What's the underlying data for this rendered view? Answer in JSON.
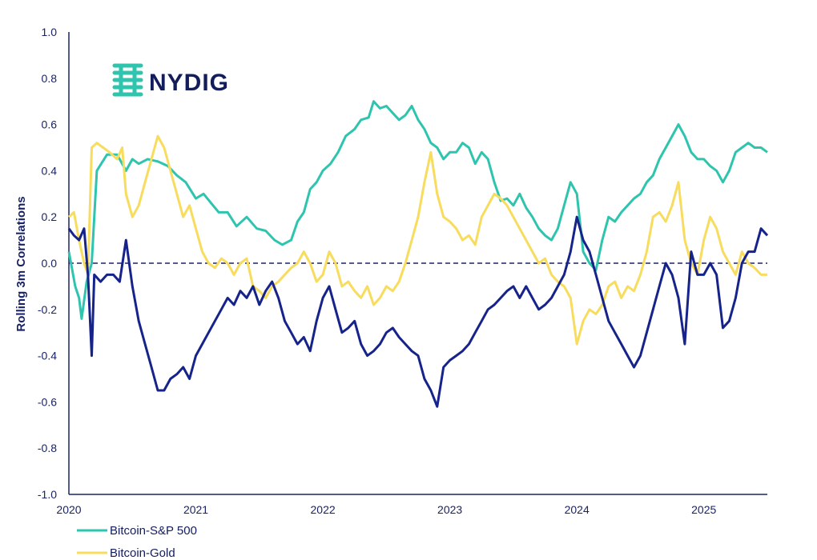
{
  "brand": {
    "name": "NYDIG",
    "icon": "nydig-logo-icon"
  },
  "colors": {
    "sp500": "#2ec4ae",
    "gold": "#f7dc5e",
    "btc": "#16238a",
    "axis": "#1a2366",
    "zero": "#1a2366",
    "logo": "#2ec4ae"
  },
  "chart_data": {
    "type": "line",
    "title": "",
    "xlabel": "",
    "ylabel": "Rolling 3m Correlations",
    "ylim": [
      -1.0,
      1.0
    ],
    "yticks": [
      "1.0",
      "0.8",
      "0.6",
      "0.4",
      "0.2",
      "0.0",
      "-0.2",
      "-0.4",
      "-0.6",
      "-0.8",
      "-1.0"
    ],
    "xlim": [
      2020.0,
      2025.5
    ],
    "xticks": [
      "2020",
      "2021",
      "2022",
      "2023",
      "2024",
      "2025"
    ],
    "grid": false,
    "zero_line": "dashed",
    "legend_placement": "bottom-left",
    "series": [
      {
        "name": "Bitcoin-S&P 500",
        "color": "#2ec4ae",
        "x": [
          2020.0,
          2020.05,
          2020.08,
          2020.1,
          2020.14,
          2020.18,
          2020.22,
          2020.3,
          2020.38,
          2020.45,
          2020.5,
          2020.55,
          2020.62,
          2020.7,
          2020.78,
          2020.85,
          2020.92,
          2021.0,
          2021.06,
          2021.12,
          2021.18,
          2021.25,
          2021.32,
          2021.4,
          2021.48,
          2021.55,
          2021.62,
          2021.68,
          2021.75,
          2021.8,
          2021.85,
          2021.9,
          2021.95,
          2022.0,
          2022.06,
          2022.12,
          2022.18,
          2022.25,
          2022.3,
          2022.36,
          2022.4,
          2022.45,
          2022.5,
          2022.55,
          2022.6,
          2022.65,
          2022.7,
          2022.75,
          2022.8,
          2022.85,
          2022.9,
          2022.95,
          2023.0,
          2023.05,
          2023.1,
          2023.15,
          2023.2,
          2023.25,
          2023.3,
          2023.35,
          2023.4,
          2023.45,
          2023.5,
          2023.55,
          2023.6,
          2023.65,
          2023.7,
          2023.75,
          2023.8,
          2023.85,
          2023.9,
          2023.95,
          2024.0,
          2024.05,
          2024.1,
          2024.15,
          2024.2,
          2024.25,
          2024.3,
          2024.35,
          2024.4,
          2024.45,
          2024.5,
          2024.55,
          2024.6,
          2024.65,
          2024.7,
          2024.75,
          2024.8,
          2024.85,
          2024.9,
          2024.95,
          2025.0,
          2025.05,
          2025.1,
          2025.15,
          2025.2,
          2025.25,
          2025.3,
          2025.35,
          2025.4,
          2025.45,
          2025.5
        ],
        "values": [
          0.05,
          -0.1,
          -0.15,
          -0.24,
          -0.08,
          0.0,
          0.4,
          0.47,
          0.47,
          0.4,
          0.45,
          0.43,
          0.45,
          0.44,
          0.42,
          0.38,
          0.35,
          0.28,
          0.3,
          0.26,
          0.22,
          0.22,
          0.16,
          0.2,
          0.15,
          0.14,
          0.1,
          0.08,
          0.1,
          0.18,
          0.22,
          0.32,
          0.35,
          0.4,
          0.43,
          0.48,
          0.55,
          0.58,
          0.62,
          0.63,
          0.7,
          0.67,
          0.68,
          0.65,
          0.62,
          0.64,
          0.68,
          0.62,
          0.58,
          0.52,
          0.5,
          0.45,
          0.48,
          0.48,
          0.52,
          0.5,
          0.43,
          0.48,
          0.45,
          0.35,
          0.27,
          0.28,
          0.25,
          0.3,
          0.24,
          0.2,
          0.15,
          0.12,
          0.1,
          0.15,
          0.25,
          0.35,
          0.3,
          0.05,
          0.0,
          -0.03,
          0.1,
          0.2,
          0.18,
          0.22,
          0.25,
          0.28,
          0.3,
          0.35,
          0.38,
          0.45,
          0.5,
          0.55,
          0.6,
          0.55,
          0.48,
          0.45,
          0.45,
          0.42,
          0.4,
          0.35,
          0.4,
          0.48,
          0.5,
          0.52,
          0.5,
          0.5,
          0.48
        ]
      },
      {
        "name": "Bitcoin-Gold",
        "color": "#f7dc5e",
        "x": [
          2020.0,
          2020.04,
          2020.08,
          2020.12,
          2020.15,
          2020.18,
          2020.22,
          2020.27,
          2020.32,
          2020.38,
          2020.42,
          2020.45,
          2020.5,
          2020.55,
          2020.6,
          2020.65,
          2020.7,
          2020.75,
          2020.8,
          2020.85,
          2020.9,
          2020.95,
          2021.0,
          2021.05,
          2021.1,
          2021.15,
          2021.2,
          2021.25,
          2021.3,
          2021.35,
          2021.4,
          2021.45,
          2021.5,
          2021.55,
          2021.6,
          2021.65,
          2021.7,
          2021.75,
          2021.8,
          2021.85,
          2021.9,
          2021.95,
          2022.0,
          2022.05,
          2022.1,
          2022.15,
          2022.2,
          2022.25,
          2022.3,
          2022.35,
          2022.4,
          2022.45,
          2022.5,
          2022.55,
          2022.6,
          2022.65,
          2022.7,
          2022.75,
          2022.8,
          2022.85,
          2022.9,
          2022.95,
          2023.0,
          2023.05,
          2023.1,
          2023.15,
          2023.2,
          2023.25,
          2023.3,
          2023.35,
          2023.4,
          2023.45,
          2023.5,
          2023.55,
          2023.6,
          2023.65,
          2023.7,
          2023.75,
          2023.8,
          2023.85,
          2023.9,
          2023.95,
          2024.0,
          2024.05,
          2024.1,
          2024.15,
          2024.2,
          2024.25,
          2024.3,
          2024.35,
          2024.4,
          2024.45,
          2024.5,
          2024.55,
          2024.6,
          2024.65,
          2024.7,
          2024.75,
          2024.8,
          2024.85,
          2024.9,
          2024.95,
          2025.0,
          2025.05,
          2025.1,
          2025.15,
          2025.2,
          2025.25,
          2025.3,
          2025.35,
          2025.4,
          2025.45,
          2025.5
        ],
        "values": [
          0.2,
          0.22,
          0.1,
          0.0,
          -0.05,
          0.5,
          0.52,
          0.5,
          0.48,
          0.45,
          0.5,
          0.3,
          0.2,
          0.25,
          0.35,
          0.45,
          0.55,
          0.5,
          0.4,
          0.3,
          0.2,
          0.25,
          0.15,
          0.05,
          0.0,
          -0.02,
          0.02,
          0.0,
          -0.05,
          0.0,
          0.02,
          -0.1,
          -0.12,
          -0.15,
          -0.1,
          -0.08,
          -0.05,
          -0.02,
          0.0,
          0.05,
          0.0,
          -0.08,
          -0.05,
          0.05,
          0.0,
          -0.1,
          -0.08,
          -0.12,
          -0.15,
          -0.1,
          -0.18,
          -0.15,
          -0.1,
          -0.12,
          -0.08,
          0.0,
          0.1,
          0.2,
          0.35,
          0.48,
          0.3,
          0.2,
          0.18,
          0.15,
          0.1,
          0.12,
          0.08,
          0.2,
          0.25,
          0.3,
          0.28,
          0.25,
          0.2,
          0.15,
          0.1,
          0.05,
          0.0,
          0.02,
          -0.05,
          -0.08,
          -0.1,
          -0.15,
          -0.35,
          -0.25,
          -0.2,
          -0.22,
          -0.18,
          -0.1,
          -0.08,
          -0.15,
          -0.1,
          -0.12,
          -0.05,
          0.05,
          0.2,
          0.22,
          0.18,
          0.25,
          0.35,
          0.1,
          0.0,
          -0.05,
          0.1,
          0.2,
          0.15,
          0.05,
          0.0,
          -0.05,
          0.05,
          0.0,
          -0.02,
          -0.05,
          -0.05
        ]
      },
      {
        "name": "",
        "color": "#16238a",
        "x": [
          2020.0,
          2020.04,
          2020.08,
          2020.12,
          2020.15,
          2020.18,
          2020.2,
          2020.25,
          2020.3,
          2020.35,
          2020.4,
          2020.45,
          2020.5,
          2020.55,
          2020.6,
          2020.65,
          2020.7,
          2020.75,
          2020.8,
          2020.85,
          2020.9,
          2020.95,
          2021.0,
          2021.05,
          2021.1,
          2021.15,
          2021.2,
          2021.25,
          2021.3,
          2021.35,
          2021.4,
          2021.45,
          2021.5,
          2021.55,
          2021.6,
          2021.65,
          2021.7,
          2021.75,
          2021.8,
          2021.85,
          2021.9,
          2021.95,
          2022.0,
          2022.05,
          2022.1,
          2022.15,
          2022.2,
          2022.25,
          2022.3,
          2022.35,
          2022.4,
          2022.45,
          2022.5,
          2022.55,
          2022.6,
          2022.65,
          2022.7,
          2022.75,
          2022.8,
          2022.85,
          2022.9,
          2022.95,
          2023.0,
          2023.05,
          2023.1,
          2023.15,
          2023.2,
          2023.25,
          2023.3,
          2023.35,
          2023.4,
          2023.45,
          2023.5,
          2023.55,
          2023.6,
          2023.65,
          2023.7,
          2023.75,
          2023.8,
          2023.85,
          2023.9,
          2023.95,
          2024.0,
          2024.05,
          2024.1,
          2024.15,
          2024.2,
          2024.25,
          2024.3,
          2024.35,
          2024.4,
          2024.45,
          2024.5,
          2024.55,
          2024.6,
          2024.65,
          2024.7,
          2024.75,
          2024.8,
          2024.85,
          2024.9,
          2024.95,
          2025.0,
          2025.05,
          2025.1,
          2025.15,
          2025.2,
          2025.25,
          2025.3,
          2025.35,
          2025.4,
          2025.45,
          2025.5
        ],
        "values": [
          0.15,
          0.12,
          0.1,
          0.15,
          -0.05,
          -0.4,
          -0.05,
          -0.08,
          -0.05,
          -0.05,
          -0.08,
          0.1,
          -0.1,
          -0.25,
          -0.35,
          -0.45,
          -0.55,
          -0.55,
          -0.5,
          -0.48,
          -0.45,
          -0.5,
          -0.4,
          -0.35,
          -0.3,
          -0.25,
          -0.2,
          -0.15,
          -0.18,
          -0.12,
          -0.15,
          -0.1,
          -0.18,
          -0.12,
          -0.08,
          -0.15,
          -0.25,
          -0.3,
          -0.35,
          -0.32,
          -0.38,
          -0.25,
          -0.15,
          -0.1,
          -0.2,
          -0.3,
          -0.28,
          -0.25,
          -0.35,
          -0.4,
          -0.38,
          -0.35,
          -0.3,
          -0.28,
          -0.32,
          -0.35,
          -0.38,
          -0.4,
          -0.5,
          -0.55,
          -0.62,
          -0.45,
          -0.42,
          -0.4,
          -0.38,
          -0.35,
          -0.3,
          -0.25,
          -0.2,
          -0.18,
          -0.15,
          -0.12,
          -0.1,
          -0.15,
          -0.1,
          -0.15,
          -0.2,
          -0.18,
          -0.15,
          -0.1,
          -0.05,
          0.05,
          0.2,
          0.1,
          0.05,
          -0.05,
          -0.15,
          -0.25,
          -0.3,
          -0.35,
          -0.4,
          -0.45,
          -0.4,
          -0.3,
          -0.2,
          -0.1,
          0.0,
          -0.05,
          -0.15,
          -0.35,
          0.05,
          -0.05,
          -0.05,
          0.0,
          -0.05,
          -0.28,
          -0.25,
          -0.15,
          0.0,
          0.05,
          0.05,
          0.15,
          0.12
        ]
      }
    ]
  }
}
